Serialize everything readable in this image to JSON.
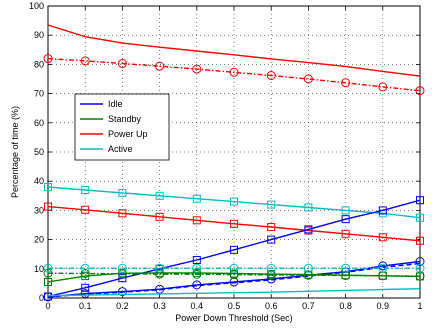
{
  "chart_data": {
    "type": "line",
    "title": "",
    "xlabel": "Power Down Threshold (Sec)",
    "ylabel": "Percentage of time (%)",
    "xlim": [
      0,
      1
    ],
    "ylim": [
      0,
      100
    ],
    "xticks": [
      0,
      0.1,
      0.2,
      0.3,
      0.4,
      0.5,
      0.6,
      0.7,
      0.8,
      0.9,
      1
    ],
    "xtick_labels": [
      "0",
      "0.1",
      "0.2",
      "0.3",
      "0.4",
      "0.5",
      "0.6",
      "0.7",
      "0.8",
      "0.9",
      "1"
    ],
    "yticks": [
      0,
      10,
      20,
      30,
      40,
      50,
      60,
      70,
      80,
      90,
      100
    ],
    "ytick_labels": [
      "0",
      "10",
      "20",
      "30",
      "40",
      "50",
      "60",
      "70",
      "80",
      "90",
      "100"
    ],
    "grid": true,
    "legend_position": "upper-left",
    "x": [
      0,
      0.1,
      0.2,
      0.3,
      0.4,
      0.5,
      0.6,
      0.7,
      0.8,
      0.9,
      1
    ],
    "legend": [
      {
        "label": "Idle",
        "color": "#0000ff"
      },
      {
        "label": "Standby",
        "color": "#008000"
      },
      {
        "label": "Power Up",
        "color": "#ff0000"
      },
      {
        "label": "Active",
        "color": "#00bfbf"
      }
    ],
    "series": [
      {
        "color": "#ff0000",
        "style": "solid",
        "marker": "none",
        "values": [
          93.5,
          89.5,
          87.3,
          85.9,
          84.6,
          83.3,
          81.9,
          80.6,
          79.3,
          77.6,
          76
        ]
      },
      {
        "color": "#ff0000",
        "style": "dashdot",
        "marker": "circle",
        "values": [
          82,
          81.2,
          80.3,
          79.4,
          78.4,
          77.3,
          76.2,
          75,
          73.7,
          72.3,
          71
        ]
      },
      {
        "color": "#00bfbf",
        "style": "solid",
        "marker": "square",
        "values": [
          38,
          37,
          36,
          35,
          34,
          33,
          32,
          31,
          30,
          29,
          27.5
        ]
      },
      {
        "color": "#ff0000",
        "style": "solid",
        "marker": "square",
        "values": [
          31.3,
          30.2,
          29,
          27.8,
          26.6,
          25.4,
          24.3,
          23.1,
          22,
          20.8,
          19.6
        ]
      },
      {
        "color": "#0000ff",
        "style": "solid",
        "marker": "square",
        "values": [
          0.5,
          3.5,
          6.8,
          10,
          13,
          16.5,
          20,
          23.5,
          27,
          30,
          33.5
        ]
      },
      {
        "color": "#0000ff",
        "style": "solid",
        "marker": "circle",
        "values": [
          0.4,
          1.5,
          2.2,
          3,
          4.5,
          5.5,
          6.5,
          7.8,
          9,
          11,
          12.5
        ]
      },
      {
        "color": "#0000ff",
        "style": "dashed",
        "marker": "none",
        "values": [
          0.3,
          1.3,
          2.0,
          2.8,
          4.2,
          5.2,
          6.2,
          7.5,
          8.8,
          10.5,
          11.8
        ]
      },
      {
        "color": "#008000",
        "style": "solid",
        "marker": "square",
        "values": [
          5.5,
          7.5,
          8.5,
          8.6,
          8.6,
          8.4,
          8.2,
          8.0,
          7.8,
          7.6,
          7.4
        ]
      },
      {
        "color": "#008000",
        "style": "dashdot",
        "marker": "circle",
        "values": [
          8.5,
          8.4,
          8.3,
          8.2,
          8.1,
          8.0,
          7.9,
          7.8,
          7.7,
          7.6,
          7.5
        ]
      },
      {
        "color": "#00bfbf",
        "style": "dashdot",
        "marker": "circle",
        "values": [
          10.2,
          10.2,
          10.2,
          10.2,
          10.2,
          10.2,
          10.2,
          10.2,
          10.2,
          10.2,
          10.2
        ]
      },
      {
        "color": "#00bfbf",
        "style": "solid",
        "marker": "none",
        "values": [
          0.8,
          1.0,
          1.2,
          1.4,
          1.6,
          1.8,
          2.0,
          2.3,
          2.6,
          2.9,
          3.2
        ]
      }
    ]
  }
}
